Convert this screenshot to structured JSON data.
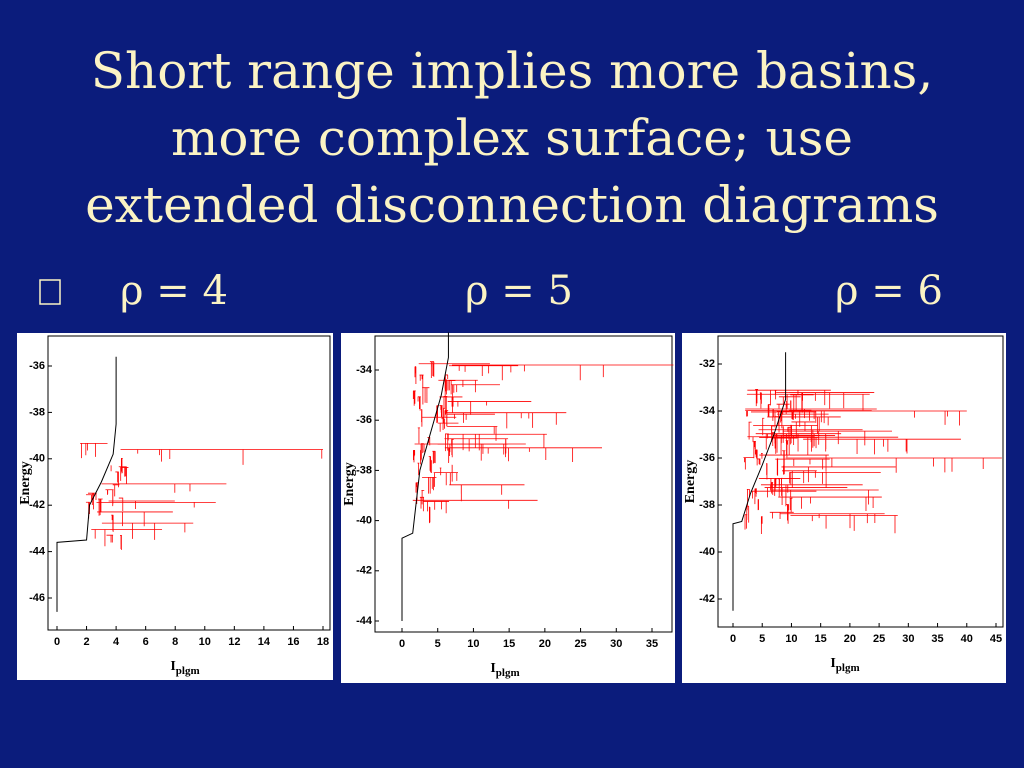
{
  "title_lines": [
    "Short range implies more basins,",
    "more complex surface; use",
    "extended disconnection diagrams"
  ],
  "panels": [
    {
      "label": "ρ = 4",
      "y_axis_label": "Energy",
      "x_axis_label": "I",
      "x_axis_label_sub": "plgm",
      "yticks": [
        -36,
        -38,
        -40,
        -42,
        -44,
        -46
      ],
      "xticks": [
        0,
        2,
        4,
        6,
        8,
        10,
        12,
        14,
        16,
        18
      ]
    },
    {
      "label": "ρ = 5",
      "y_axis_label": "Energy",
      "x_axis_label": "I",
      "x_axis_label_sub": "plgm",
      "yticks": [
        -34,
        -36,
        -38,
        -40,
        -42,
        -44
      ],
      "xticks": [
        0,
        5,
        10,
        15,
        20,
        25,
        30,
        35
      ]
    },
    {
      "label": "ρ = 6",
      "y_axis_label": "Energy",
      "x_axis_label": "I",
      "x_axis_label_sub": "plgm",
      "yticks": [
        -32,
        -34,
        -36,
        -38,
        -40,
        -42
      ],
      "xticks": [
        0,
        5,
        10,
        15,
        20,
        25,
        30,
        35,
        40,
        45
      ]
    }
  ]
}
